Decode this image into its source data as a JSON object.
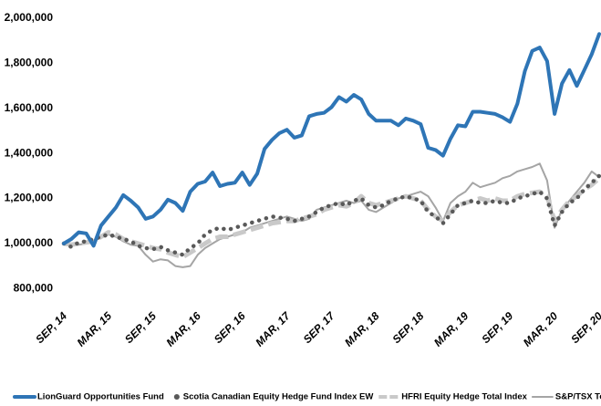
{
  "chart_data": {
    "type": "line",
    "categories": [
      "SEP, 14",
      null,
      null,
      null,
      null,
      null,
      "MAR, 15",
      null,
      null,
      null,
      null,
      null,
      "SEP, 15",
      null,
      null,
      null,
      null,
      null,
      "MAR, 16",
      null,
      null,
      null,
      null,
      null,
      "SEP, 16",
      null,
      null,
      null,
      null,
      null,
      "MAR, 17",
      null,
      null,
      null,
      null,
      null,
      "SEP, 17",
      null,
      null,
      null,
      null,
      null,
      "MAR, 18",
      null,
      null,
      null,
      null,
      null,
      "SEP, 18",
      null,
      null,
      null,
      null,
      null,
      "MAR, 19",
      null,
      null,
      null,
      null,
      null,
      "SEP, 19",
      null,
      null,
      null,
      null,
      null,
      "MAR, 20",
      null,
      null,
      null,
      null,
      null,
      "SEP, 20"
    ],
    "series": [
      {
        "name": "LionGuard  Opportunities Fund",
        "color": "#2e75b6",
        "values": [
          1000000,
          1020000,
          1050000,
          1045000,
          990000,
          1080000,
          1120000,
          1160000,
          1215000,
          1190000,
          1160000,
          1110000,
          1120000,
          1150000,
          1195000,
          1180000,
          1145000,
          1230000,
          1265000,
          1275000,
          1315000,
          1255000,
          1265000,
          1270000,
          1315000,
          1260000,
          1310000,
          1420000,
          1460000,
          1490000,
          1505000,
          1470000,
          1480000,
          1565000,
          1575000,
          1580000,
          1605000,
          1650000,
          1630000,
          1660000,
          1640000,
          1575000,
          1545000,
          1545000,
          1545000,
          1525000,
          1555000,
          1545000,
          1530000,
          1425000,
          1415000,
          1390000,
          1465000,
          1525000,
          1520000,
          1585000,
          1585000,
          1580000,
          1575000,
          1560000,
          1540000,
          1620000,
          1765000,
          1855000,
          1870000,
          1810000,
          1575000,
          1710000,
          1770000,
          1700000,
          1770000,
          1840000,
          1930000
        ]
      },
      {
        "name": "Scotia Canadian Equity Hedge Fund  Index EW",
        "color": "#595959",
        "values": [
          1000000,
          985000,
          1005000,
          1010000,
          1020000,
          1030000,
          1040000,
          1030000,
          1020000,
          1010000,
          990000,
          980000,
          975000,
          985000,
          970000,
          960000,
          950000,
          980000,
          1000000,
          1040000,
          1060000,
          1070000,
          1060000,
          1070000,
          1080000,
          1090000,
          1100000,
          1110000,
          1120000,
          1115000,
          1110000,
          1100000,
          1110000,
          1120000,
          1140000,
          1160000,
          1170000,
          1180000,
          1170000,
          1190000,
          1200000,
          1170000,
          1160000,
          1170000,
          1190000,
          1200000,
          1210000,
          1200000,
          1190000,
          1140000,
          1120000,
          1090000,
          1130000,
          1170000,
          1180000,
          1190000,
          1180000,
          1180000,
          1190000,
          1180000,
          1180000,
          1200000,
          1210000,
          1220000,
          1230000,
          1200000,
          1080000,
          1140000,
          1180000,
          1200000,
          1240000,
          1270000,
          1300000
        ]
      },
      {
        "name": "HFRI Equity Hedge Total Index",
        "color": "#c9c9c9",
        "values": [
          1000000,
          995000,
          1000000,
          1005000,
          1010000,
          1030000,
          1050000,
          1040000,
          1020000,
          1010000,
          1000000,
          990000,
          980000,
          975000,
          960000,
          950000,
          940000,
          960000,
          980000,
          1000000,
          1020000,
          1030000,
          1030000,
          1040000,
          1050000,
          1060000,
          1070000,
          1080000,
          1090000,
          1095000,
          1100000,
          1100000,
          1110000,
          1120000,
          1130000,
          1150000,
          1160000,
          1170000,
          1165000,
          1180000,
          1210000,
          1180000,
          1170000,
          1180000,
          1190000,
          1200000,
          1210000,
          1200000,
          1190000,
          1150000,
          1120000,
          1100000,
          1140000,
          1170000,
          1180000,
          1190000,
          1200000,
          1190000,
          1200000,
          1190000,
          1190000,
          1210000,
          1220000,
          1225000,
          1230000,
          1210000,
          1100000,
          1150000,
          1190000,
          1210000,
          1240000,
          1260000,
          1290000
        ]
      },
      {
        "name": "S&P/TSX  Total Return Index",
        "color": "#a5a5a5",
        "values": [
          1000000,
          990000,
          995000,
          1000000,
          1010000,
          1030000,
          1040000,
          1030000,
          1010000,
          995000,
          990000,
          950000,
          920000,
          930000,
          925000,
          900000,
          895000,
          900000,
          950000,
          980000,
          1000000,
          1020000,
          1030000,
          1040000,
          1050000,
          1070000,
          1080000,
          1090000,
          1100000,
          1110000,
          1120000,
          1110000,
          1100000,
          1110000,
          1150000,
          1160000,
          1170000,
          1180000,
          1190000,
          1180000,
          1190000,
          1150000,
          1140000,
          1160000,
          1180000,
          1200000,
          1210000,
          1220000,
          1230000,
          1210000,
          1160000,
          1100000,
          1180000,
          1210000,
          1230000,
          1270000,
          1250000,
          1260000,
          1270000,
          1290000,
          1300000,
          1320000,
          1330000,
          1340000,
          1355000,
          1280000,
          1070000,
          1150000,
          1190000,
          1230000,
          1270000,
          1320000,
          1295000
        ]
      }
    ],
    "ylim": [
      700000,
      2000000
    ],
    "yticks": [
      {
        "value": 800000,
        "label": "800,000"
      },
      {
        "value": 1000000,
        "label": "1,000,000"
      },
      {
        "value": 1200000,
        "label": "1,200,000"
      },
      {
        "value": 1400000,
        "label": "1,400,000"
      },
      {
        "value": 1600000,
        "label": "1,600,000"
      },
      {
        "value": 1800000,
        "label": "1,800,000"
      },
      {
        "value": 2000000,
        "label": "2,000,000"
      }
    ],
    "legend": "bottom"
  }
}
